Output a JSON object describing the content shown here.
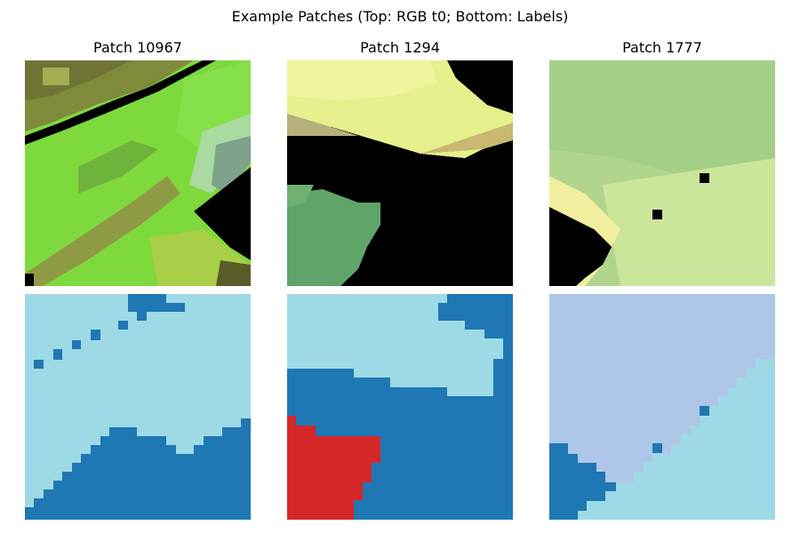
{
  "figure": {
    "title": "Example Patches (Top: RGB t0; Bottom: Labels)"
  },
  "patches": [
    {
      "title": "Patch 10967"
    },
    {
      "title": "Patch 1294"
    },
    {
      "title": "Patch 1777"
    }
  ],
  "label_colors": {
    "class_a": "#1f77b4",
    "class_b": "#9edae5",
    "class_c": "#aec7e8",
    "class_d": "#d62728"
  },
  "rgb_colors": {
    "nodata": "#000000",
    "bright_green": "#7ee03a",
    "olive": "#8f8f3c",
    "pale_yellow": "#e8f28a",
    "sage": "#a8d08a",
    "teal_green": "#5aa070"
  }
}
